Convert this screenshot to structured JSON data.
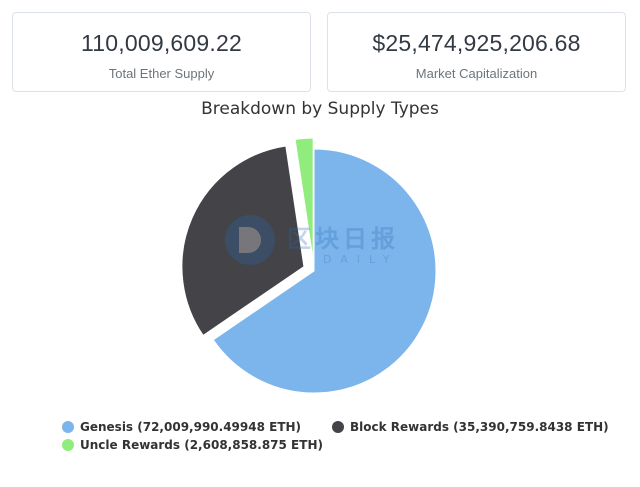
{
  "stats": {
    "total_supply": {
      "value": "110,009,609.22",
      "label": "Total Ether Supply"
    },
    "market_cap": {
      "value": "$25,474,925,206.68",
      "label": "Market Capitalization"
    }
  },
  "chart_data": {
    "type": "pie",
    "title": "Breakdown by Supply Types",
    "legend_position": "bottom",
    "slices": [
      {
        "name": "Genesis",
        "value": 72009990.49948,
        "legend": "Genesis (72,009,990.49948 ETH)",
        "color": "#7cb5ec",
        "exploded": false
      },
      {
        "name": "Block Rewards",
        "value": 35390759.8438,
        "legend": "Block Rewards (35,390,759.8438 ETH)",
        "color": "#434348",
        "exploded": true
      },
      {
        "name": "Uncle Rewards",
        "value": 2608858.875,
        "legend": "Uncle Rewards (2,608,858.875 ETH)",
        "color": "#90ed7d",
        "exploded": true
      }
    ]
  },
  "watermark": {
    "text": "区块日报",
    "sub": "DAILY"
  }
}
